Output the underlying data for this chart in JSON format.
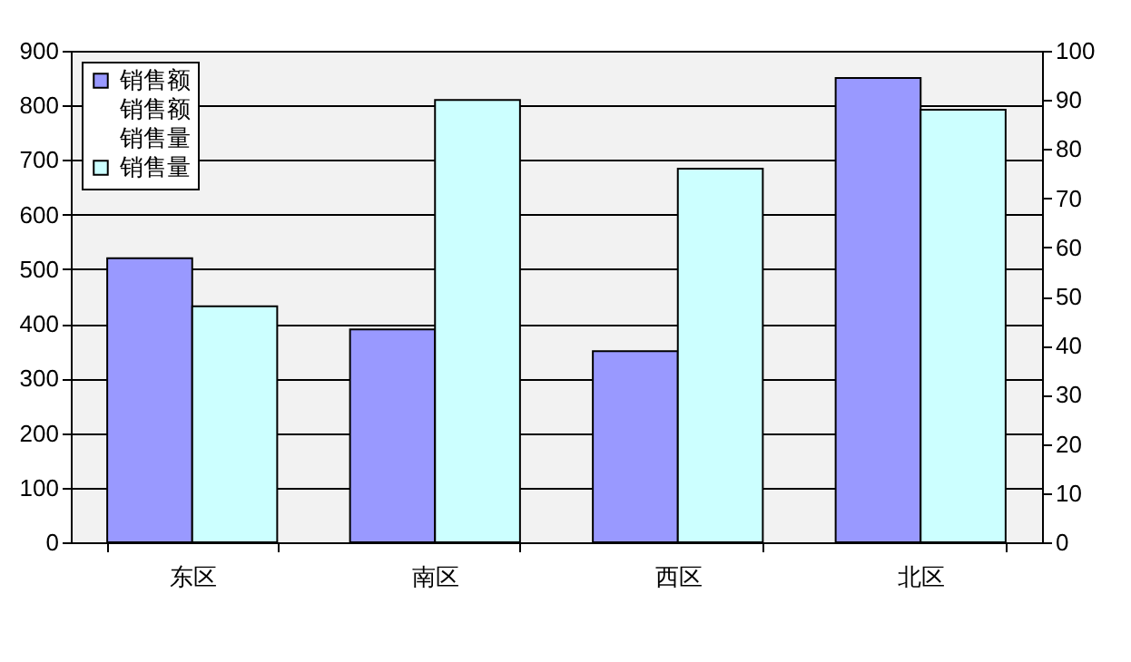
{
  "chart_data": {
    "type": "bar",
    "categories": [
      "东区",
      "南区",
      "西区",
      "北区"
    ],
    "series": [
      {
        "name": "销售额",
        "color": "#9999ff",
        "values": [
          520,
          390,
          350,
          850
        ]
      },
      {
        "name": "销售额",
        "axis": "y2",
        "values": [
          null,
          null,
          null,
          null
        ]
      },
      {
        "name": "销售量",
        "values": [
          null,
          null,
          null,
          null
        ]
      },
      {
        "name": "销售量",
        "color": "#ccffff",
        "axis": "y2",
        "values": [
          48,
          90,
          76,
          88
        ]
      }
    ],
    "ylim": [
      0,
      900
    ],
    "yticks": [
      0,
      100,
      200,
      300,
      400,
      500,
      600,
      700,
      800,
      900
    ],
    "y2lim": [
      0,
      100
    ],
    "y2ticks": [
      0,
      10,
      20,
      30,
      40,
      50,
      60,
      70,
      80,
      90,
      100
    ],
    "grid": "y",
    "legend": "top left"
  }
}
